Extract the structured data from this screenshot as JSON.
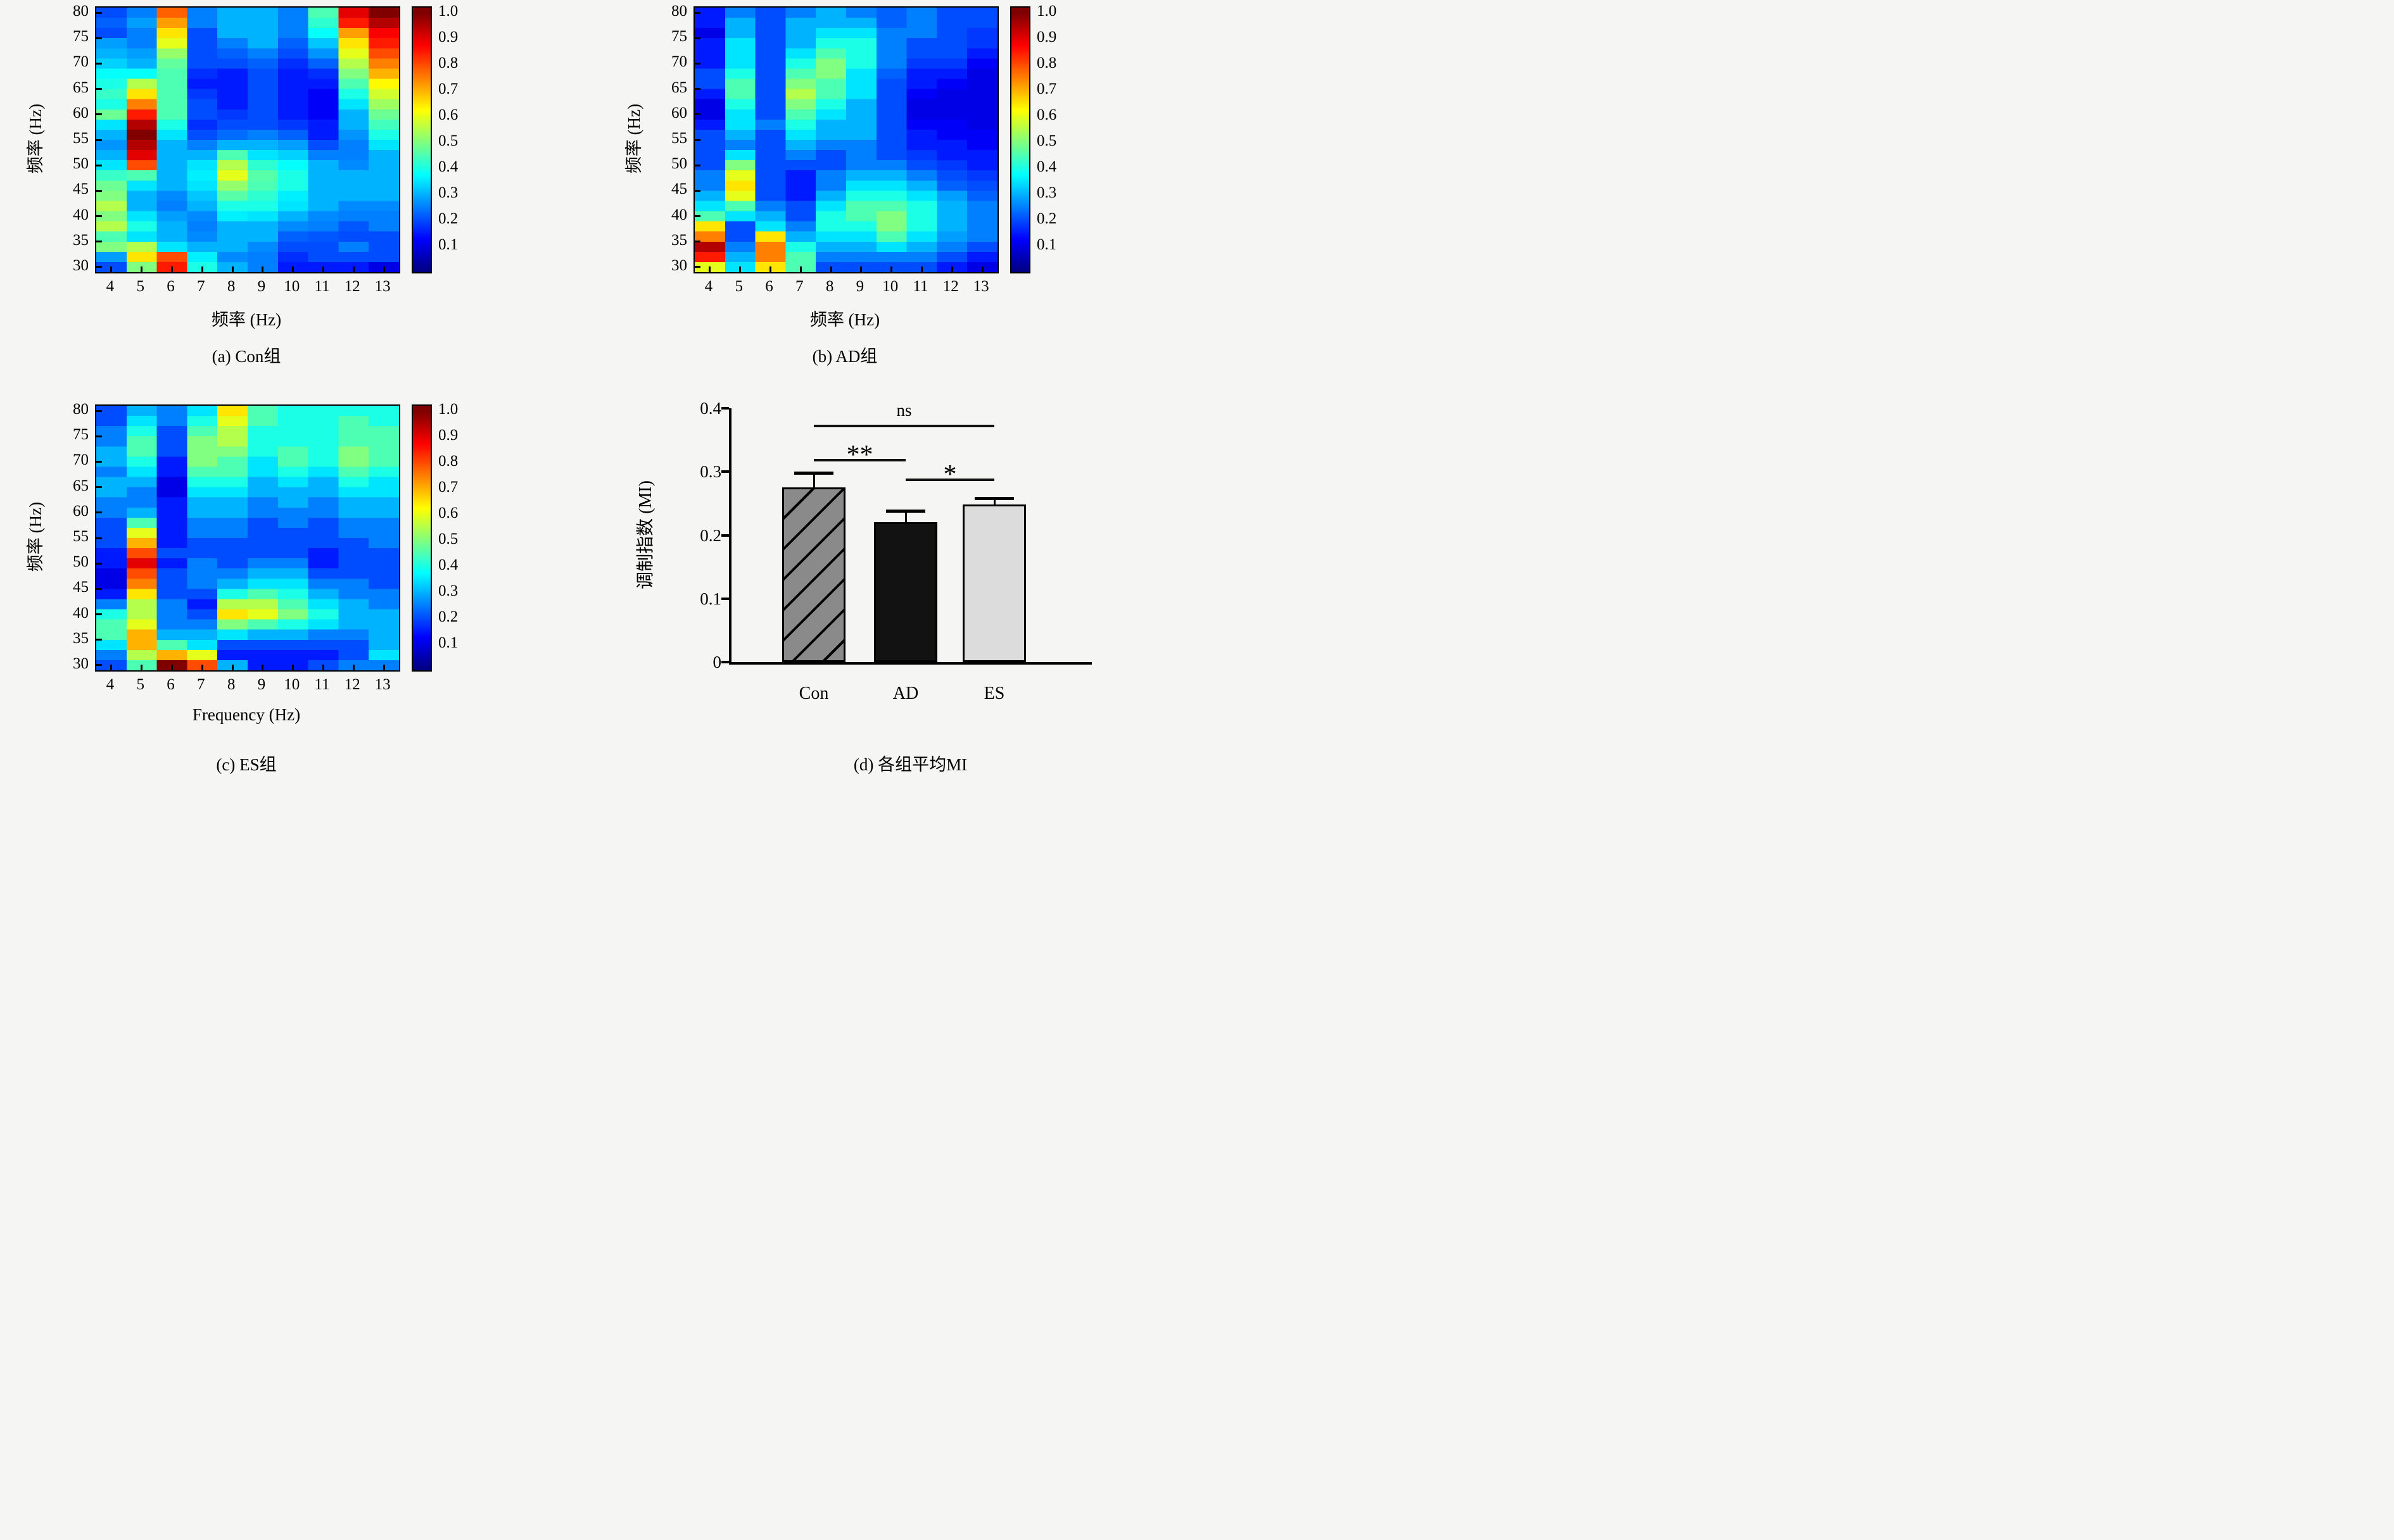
{
  "figure": {
    "background": "#f5f5f3",
    "colormap": "jet",
    "panel_order": [
      "a",
      "b",
      "c",
      "d"
    ]
  },
  "chart_data": [
    {
      "type": "heatmap",
      "panel": "a",
      "caption": "(a) Con组",
      "xlabel": "频率 (Hz)",
      "ylabel": "频率 (Hz)",
      "x_ticks": [
        4,
        5,
        6,
        7,
        8,
        9,
        10,
        11,
        12,
        13
      ],
      "y_ticks": [
        80,
        75,
        70,
        65,
        60,
        55,
        50,
        45,
        40,
        35,
        30
      ],
      "x_range": [
        3.5,
        13.5
      ],
      "y_range": [
        29,
        81
      ],
      "colorbar_ticks": [
        "1.0",
        "0.9",
        "0.8",
        "0.7",
        "0.6",
        "0.5",
        "0.4",
        "0.3",
        "0.2",
        "0.1"
      ],
      "colorbar_range": [
        0,
        1.02
      ],
      "x_values": [
        4,
        5,
        6,
        7,
        8,
        9,
        10,
        11,
        12,
        13
      ],
      "y_values_top_to_bottom": [
        80,
        78,
        76,
        74,
        72,
        70,
        68,
        66,
        64,
        62,
        60,
        58,
        56,
        54,
        52,
        50,
        48,
        46,
        44,
        42,
        40,
        38,
        36,
        34,
        32,
        30
      ],
      "values": [
        [
          0.2,
          0.25,
          0.78,
          0.25,
          0.3,
          0.3,
          0.25,
          0.45,
          0.9,
          1.0
        ],
        [
          0.22,
          0.28,
          0.72,
          0.25,
          0.3,
          0.3,
          0.25,
          0.42,
          0.85,
          0.95
        ],
        [
          0.2,
          0.25,
          0.65,
          0.2,
          0.3,
          0.3,
          0.25,
          0.38,
          0.72,
          0.88
        ],
        [
          0.28,
          0.25,
          0.6,
          0.2,
          0.25,
          0.3,
          0.22,
          0.32,
          0.65,
          0.85
        ],
        [
          0.3,
          0.28,
          0.52,
          0.2,
          0.22,
          0.25,
          0.2,
          0.27,
          0.6,
          0.8
        ],
        [
          0.33,
          0.3,
          0.47,
          0.2,
          0.2,
          0.22,
          0.17,
          0.22,
          0.55,
          0.75
        ],
        [
          0.38,
          0.38,
          0.45,
          0.17,
          0.15,
          0.2,
          0.15,
          0.17,
          0.5,
          0.7
        ],
        [
          0.4,
          0.55,
          0.45,
          0.15,
          0.15,
          0.2,
          0.15,
          0.15,
          0.45,
          0.63
        ],
        [
          0.43,
          0.65,
          0.45,
          0.18,
          0.15,
          0.2,
          0.15,
          0.12,
          0.4,
          0.58
        ],
        [
          0.4,
          0.75,
          0.45,
          0.2,
          0.15,
          0.2,
          0.15,
          0.12,
          0.35,
          0.53
        ],
        [
          0.48,
          0.85,
          0.45,
          0.2,
          0.18,
          0.2,
          0.15,
          0.12,
          0.3,
          0.48
        ],
        [
          0.35,
          0.95,
          0.4,
          0.17,
          0.2,
          0.2,
          0.18,
          0.15,
          0.3,
          0.44
        ],
        [
          0.3,
          1.0,
          0.35,
          0.2,
          0.23,
          0.25,
          0.22,
          0.15,
          0.27,
          0.4
        ],
        [
          0.27,
          0.95,
          0.3,
          0.25,
          0.3,
          0.3,
          0.28,
          0.2,
          0.25,
          0.35
        ],
        [
          0.3,
          0.9,
          0.3,
          0.3,
          0.45,
          0.35,
          0.33,
          0.25,
          0.25,
          0.3
        ],
        [
          0.35,
          0.8,
          0.3,
          0.35,
          0.55,
          0.42,
          0.38,
          0.3,
          0.26,
          0.3
        ],
        [
          0.43,
          0.45,
          0.3,
          0.36,
          0.6,
          0.46,
          0.4,
          0.3,
          0.3,
          0.3
        ],
        [
          0.48,
          0.35,
          0.3,
          0.35,
          0.52,
          0.45,
          0.4,
          0.3,
          0.3,
          0.3
        ],
        [
          0.5,
          0.3,
          0.26,
          0.32,
          0.46,
          0.42,
          0.36,
          0.3,
          0.3,
          0.3
        ],
        [
          0.55,
          0.3,
          0.25,
          0.3,
          0.4,
          0.4,
          0.35,
          0.3,
          0.26,
          0.26
        ],
        [
          0.5,
          0.35,
          0.28,
          0.26,
          0.36,
          0.35,
          0.3,
          0.26,
          0.25,
          0.25
        ],
        [
          0.55,
          0.4,
          0.3,
          0.25,
          0.3,
          0.3,
          0.26,
          0.25,
          0.21,
          0.25
        ],
        [
          0.45,
          0.35,
          0.3,
          0.26,
          0.3,
          0.3,
          0.22,
          0.21,
          0.2,
          0.2
        ],
        [
          0.5,
          0.55,
          0.35,
          0.3,
          0.3,
          0.26,
          0.2,
          0.2,
          0.25,
          0.2
        ],
        [
          0.28,
          0.65,
          0.8,
          0.36,
          0.26,
          0.25,
          0.17,
          0.2,
          0.2,
          0.2
        ],
        [
          0.2,
          0.5,
          0.85,
          0.4,
          0.3,
          0.25,
          0.15,
          0.15,
          0.15,
          0.1
        ]
      ]
    },
    {
      "type": "heatmap",
      "panel": "b",
      "caption": "(b) AD组",
      "xlabel": "频率 (Hz)",
      "ylabel": "频率 (Hz)",
      "x_ticks": [
        4,
        5,
        6,
        7,
        8,
        9,
        10,
        11,
        12,
        13
      ],
      "y_ticks": [
        80,
        75,
        70,
        65,
        60,
        55,
        50,
        45,
        40,
        35,
        30
      ],
      "x_range": [
        3.5,
        13.5
      ],
      "y_range": [
        29,
        81
      ],
      "colorbar_ticks": [
        "1.0",
        "0.9",
        "0.8",
        "0.7",
        "0.6",
        "0.5",
        "0.4",
        "0.3",
        "0.2",
        "0.1"
      ],
      "colorbar_range": [
        0,
        1.02
      ],
      "x_values": [
        4,
        5,
        6,
        7,
        8,
        9,
        10,
        11,
        12,
        13
      ],
      "y_values_top_to_bottom": [
        80,
        78,
        76,
        74,
        72,
        70,
        68,
        66,
        64,
        62,
        60,
        58,
        56,
        54,
        52,
        50,
        48,
        46,
        44,
        42,
        40,
        38,
        36,
        34,
        32,
        30
      ],
      "values": [
        [
          0.15,
          0.25,
          0.2,
          0.25,
          0.3,
          0.25,
          0.22,
          0.25,
          0.2,
          0.2
        ],
        [
          0.15,
          0.3,
          0.2,
          0.3,
          0.3,
          0.3,
          0.22,
          0.25,
          0.2,
          0.2
        ],
        [
          0.1,
          0.3,
          0.2,
          0.3,
          0.35,
          0.35,
          0.25,
          0.25,
          0.2,
          0.18
        ],
        [
          0.15,
          0.35,
          0.2,
          0.3,
          0.4,
          0.4,
          0.25,
          0.2,
          0.2,
          0.18
        ],
        [
          0.15,
          0.35,
          0.2,
          0.35,
          0.45,
          0.4,
          0.25,
          0.2,
          0.2,
          0.15
        ],
        [
          0.15,
          0.35,
          0.2,
          0.4,
          0.5,
          0.4,
          0.25,
          0.18,
          0.18,
          0.12
        ],
        [
          0.2,
          0.4,
          0.2,
          0.45,
          0.5,
          0.35,
          0.22,
          0.15,
          0.15,
          0.1
        ],
        [
          0.2,
          0.45,
          0.2,
          0.5,
          0.45,
          0.35,
          0.2,
          0.15,
          0.12,
          0.1
        ],
        [
          0.15,
          0.45,
          0.2,
          0.55,
          0.45,
          0.35,
          0.2,
          0.12,
          0.1,
          0.1
        ],
        [
          0.1,
          0.4,
          0.2,
          0.5,
          0.4,
          0.3,
          0.2,
          0.1,
          0.1,
          0.1
        ],
        [
          0.1,
          0.35,
          0.2,
          0.45,
          0.35,
          0.3,
          0.2,
          0.1,
          0.1,
          0.1
        ],
        [
          0.15,
          0.35,
          0.25,
          0.4,
          0.3,
          0.3,
          0.2,
          0.12,
          0.12,
          0.1
        ],
        [
          0.2,
          0.3,
          0.2,
          0.35,
          0.3,
          0.3,
          0.2,
          0.15,
          0.12,
          0.12
        ],
        [
          0.2,
          0.25,
          0.2,
          0.3,
          0.25,
          0.25,
          0.2,
          0.15,
          0.15,
          0.12
        ],
        [
          0.2,
          0.35,
          0.2,
          0.25,
          0.2,
          0.25,
          0.2,
          0.18,
          0.15,
          0.15
        ],
        [
          0.2,
          0.5,
          0.2,
          0.2,
          0.2,
          0.25,
          0.25,
          0.2,
          0.18,
          0.15
        ],
        [
          0.25,
          0.6,
          0.2,
          0.15,
          0.25,
          0.3,
          0.3,
          0.25,
          0.2,
          0.18
        ],
        [
          0.25,
          0.65,
          0.2,
          0.15,
          0.25,
          0.35,
          0.35,
          0.3,
          0.22,
          0.2
        ],
        [
          0.3,
          0.6,
          0.2,
          0.15,
          0.3,
          0.4,
          0.4,
          0.35,
          0.28,
          0.22
        ],
        [
          0.35,
          0.45,
          0.25,
          0.2,
          0.35,
          0.45,
          0.45,
          0.4,
          0.3,
          0.25
        ],
        [
          0.45,
          0.35,
          0.3,
          0.2,
          0.4,
          0.45,
          0.5,
          0.4,
          0.3,
          0.25
        ],
        [
          0.65,
          0.2,
          0.35,
          0.25,
          0.4,
          0.4,
          0.5,
          0.4,
          0.3,
          0.25
        ],
        [
          0.75,
          0.2,
          0.65,
          0.3,
          0.35,
          0.35,
          0.45,
          0.35,
          0.28,
          0.25
        ],
        [
          0.95,
          0.25,
          0.75,
          0.4,
          0.3,
          0.3,
          0.35,
          0.3,
          0.25,
          0.2
        ],
        [
          0.85,
          0.3,
          0.75,
          0.45,
          0.25,
          0.25,
          0.25,
          0.25,
          0.2,
          0.15
        ],
        [
          0.6,
          0.35,
          0.65,
          0.45,
          0.2,
          0.2,
          0.2,
          0.2,
          0.15,
          0.1
        ]
      ]
    },
    {
      "type": "heatmap",
      "panel": "c",
      "caption": "(c) ES组",
      "xlabel": "Frequency (Hz)",
      "ylabel": "频率 (Hz)",
      "x_ticks": [
        4,
        5,
        6,
        7,
        8,
        9,
        10,
        11,
        12,
        13
      ],
      "y_ticks": [
        80,
        75,
        70,
        65,
        60,
        55,
        50,
        45,
        40,
        35,
        30
      ],
      "x_range": [
        3.5,
        13.5
      ],
      "y_range": [
        29,
        81
      ],
      "colorbar_ticks": [
        "1.0",
        "0.9",
        "0.8",
        "0.7",
        "0.6",
        "0.5",
        "0.4",
        "0.3",
        "0.2",
        "0.1"
      ],
      "colorbar_range": [
        0,
        1.02
      ],
      "x_values": [
        4,
        5,
        6,
        7,
        8,
        9,
        10,
        11,
        12,
        13
      ],
      "y_values_top_to_bottom": [
        80,
        78,
        76,
        74,
        72,
        70,
        68,
        66,
        64,
        62,
        60,
        58,
        56,
        54,
        52,
        50,
        48,
        46,
        44,
        42,
        40,
        38,
        36,
        34,
        32,
        30
      ],
      "values": [
        [
          0.2,
          0.3,
          0.25,
          0.35,
          0.65,
          0.45,
          0.4,
          0.4,
          0.4,
          0.4
        ],
        [
          0.2,
          0.35,
          0.25,
          0.4,
          0.6,
          0.45,
          0.4,
          0.4,
          0.45,
          0.4
        ],
        [
          0.25,
          0.4,
          0.2,
          0.45,
          0.55,
          0.4,
          0.4,
          0.4,
          0.45,
          0.45
        ],
        [
          0.25,
          0.45,
          0.2,
          0.5,
          0.55,
          0.4,
          0.4,
          0.4,
          0.45,
          0.45
        ],
        [
          0.3,
          0.45,
          0.2,
          0.5,
          0.5,
          0.4,
          0.45,
          0.4,
          0.5,
          0.45
        ],
        [
          0.3,
          0.4,
          0.15,
          0.5,
          0.45,
          0.35,
          0.45,
          0.4,
          0.5,
          0.45
        ],
        [
          0.25,
          0.35,
          0.15,
          0.45,
          0.45,
          0.35,
          0.4,
          0.35,
          0.45,
          0.4
        ],
        [
          0.3,
          0.3,
          0.1,
          0.4,
          0.4,
          0.3,
          0.35,
          0.3,
          0.4,
          0.35
        ],
        [
          0.3,
          0.25,
          0.1,
          0.35,
          0.35,
          0.3,
          0.3,
          0.3,
          0.35,
          0.35
        ],
        [
          0.25,
          0.25,
          0.15,
          0.3,
          0.3,
          0.25,
          0.3,
          0.25,
          0.3,
          0.3
        ],
        [
          0.25,
          0.3,
          0.15,
          0.3,
          0.3,
          0.25,
          0.25,
          0.25,
          0.3,
          0.3
        ],
        [
          0.2,
          0.45,
          0.15,
          0.25,
          0.25,
          0.2,
          0.25,
          0.2,
          0.25,
          0.25
        ],
        [
          0.2,
          0.6,
          0.15,
          0.25,
          0.25,
          0.2,
          0.2,
          0.2,
          0.25,
          0.25
        ],
        [
          0.2,
          0.7,
          0.15,
          0.2,
          0.2,
          0.2,
          0.2,
          0.2,
          0.2,
          0.25
        ],
        [
          0.15,
          0.8,
          0.2,
          0.2,
          0.2,
          0.2,
          0.2,
          0.15,
          0.2,
          0.2
        ],
        [
          0.15,
          0.9,
          0.15,
          0.25,
          0.2,
          0.25,
          0.25,
          0.15,
          0.2,
          0.2
        ],
        [
          0.1,
          0.8,
          0.2,
          0.25,
          0.25,
          0.3,
          0.3,
          0.2,
          0.2,
          0.2
        ],
        [
          0.1,
          0.75,
          0.2,
          0.25,
          0.3,
          0.35,
          0.35,
          0.25,
          0.25,
          0.2
        ],
        [
          0.15,
          0.65,
          0.2,
          0.2,
          0.4,
          0.45,
          0.4,
          0.3,
          0.25,
          0.25
        ],
        [
          0.25,
          0.55,
          0.25,
          0.15,
          0.55,
          0.55,
          0.45,
          0.35,
          0.3,
          0.25
        ],
        [
          0.4,
          0.55,
          0.25,
          0.2,
          0.65,
          0.6,
          0.5,
          0.4,
          0.3,
          0.3
        ],
        [
          0.45,
          0.6,
          0.25,
          0.25,
          0.5,
          0.45,
          0.4,
          0.35,
          0.3,
          0.3
        ],
        [
          0.45,
          0.7,
          0.3,
          0.3,
          0.35,
          0.3,
          0.3,
          0.25,
          0.25,
          0.3
        ],
        [
          0.35,
          0.7,
          0.45,
          0.35,
          0.2,
          0.2,
          0.2,
          0.2,
          0.2,
          0.3
        ],
        [
          0.25,
          0.55,
          0.7,
          0.6,
          0.15,
          0.15,
          0.15,
          0.15,
          0.2,
          0.35
        ],
        [
          0.2,
          0.45,
          1.0,
          0.8,
          0.3,
          0.15,
          0.15,
          0.2,
          0.25,
          0.25
        ]
      ]
    },
    {
      "type": "bar",
      "panel": "d",
      "caption": "(d) 各组平均MI",
      "ylabel": "调制指数 (MI)",
      "categories": [
        "Con",
        "AD",
        "ES"
      ],
      "values": [
        0.275,
        0.22,
        0.248
      ],
      "errors": [
        0.023,
        0.018,
        0.01
      ],
      "bar_colors": [
        "#8a8a8a",
        "#121212",
        "#dcdcdc"
      ],
      "bar_hatch": [
        "diagonal",
        null,
        null
      ],
      "ylim": [
        0,
        0.4
      ],
      "y_ticks": [
        "0",
        "0.1",
        "0.2",
        "0.3",
        "0.4"
      ],
      "y_tick_values": [
        0,
        0.1,
        0.2,
        0.3,
        0.4
      ],
      "significance": [
        {
          "from": 0,
          "to": 1,
          "label": "**",
          "y": 0.318
        },
        {
          "from": 1,
          "to": 2,
          "label": "*",
          "y": 0.287
        },
        {
          "from": 0,
          "to": 2,
          "label": "ns",
          "y": 0.372
        }
      ]
    }
  ]
}
